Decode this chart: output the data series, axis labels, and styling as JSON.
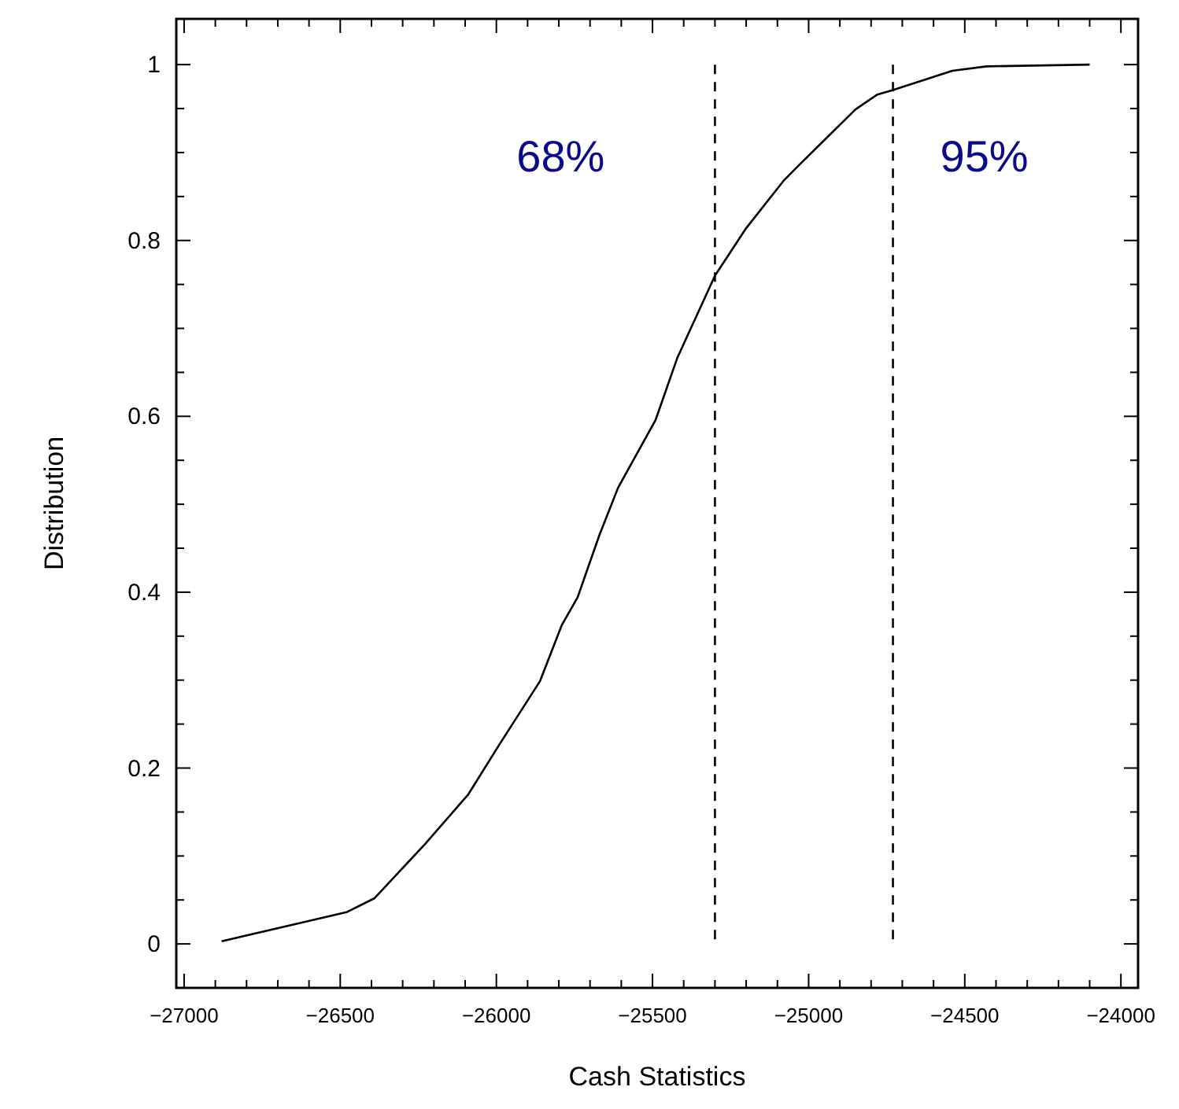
{
  "chart_data": {
    "type": "line",
    "xlabel": "Cash Statistics",
    "ylabel": "Distribution",
    "xlim": [
      -27025,
      -23945
    ],
    "ylim": [
      -0.05,
      1.052
    ],
    "xticks": [
      {
        "value": -27000,
        "label": "−27000"
      },
      {
        "value": -26500,
        "label": "−26500"
      },
      {
        "value": -26000,
        "label": "−26000"
      },
      {
        "value": -25500,
        "label": "−25500"
      },
      {
        "value": -25000,
        "label": "−25000"
      },
      {
        "value": -24500,
        "label": "−24500"
      },
      {
        "value": -24000,
        "label": "−24000"
      }
    ],
    "yticks": [
      0,
      0.2,
      0.4,
      0.6,
      0.8,
      1
    ],
    "grid": false,
    "marker": "none",
    "line_style": "solid",
    "series": [
      {
        "color": "#000000",
        "x": [
          -26880,
          -26480,
          -26390,
          -26230,
          -26090,
          -25990,
          -25860,
          -25790,
          -25740,
          -25670,
          -25610,
          -25490,
          -25420,
          -25300,
          -25200,
          -25080,
          -25030,
          -24850,
          -24780,
          -24730,
          -24540,
          -24430,
          -24100
        ],
        "values": [
          0.003,
          0.036,
          0.052,
          0.113,
          0.17,
          0.227,
          0.299,
          0.363,
          0.394,
          0.465,
          0.519,
          0.596,
          0.667,
          0.76,
          0.814,
          0.868,
          0.886,
          0.949,
          0.966,
          0.971,
          0.993,
          0.998,
          1.0
        ]
      }
    ],
    "ref_lines": [
      {
        "axis": "x",
        "value": -25300,
        "line_style": "dashed",
        "color": "#000000"
      },
      {
        "axis": "x",
        "value": -24730,
        "line_style": "dashed",
        "color": "#000000"
      }
    ],
    "annotations": [
      "68%",
      "95%"
    ]
  }
}
